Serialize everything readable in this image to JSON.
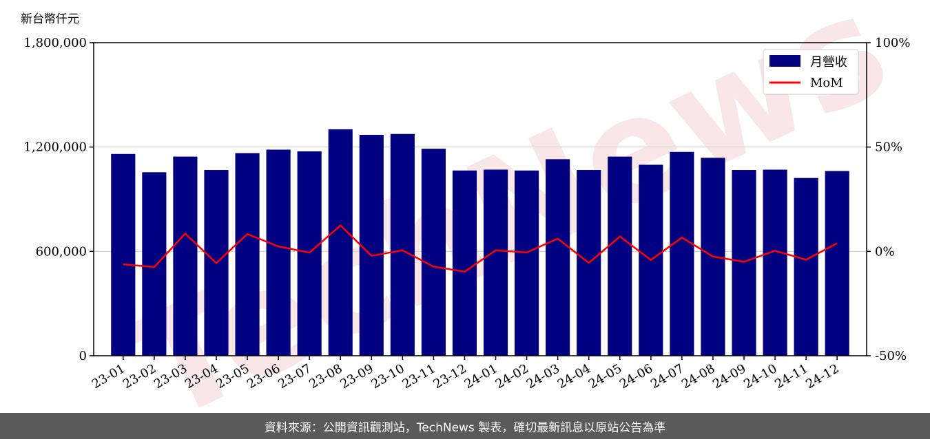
{
  "watermark": "TechNews",
  "footer": {
    "text": "資料來源：公開資訊觀測站，TechNews 製表，確切最新訊息以原站公告為準"
  },
  "colors": {
    "bar": "#000080",
    "line": "#ff0000",
    "grid": "#d9d9d9",
    "footer_bg": "#5a5a5a"
  },
  "chart_data": {
    "type": "bar",
    "unit_label": "新台幣仟元",
    "categories": [
      "23-01",
      "23-02",
      "23-03",
      "23-04",
      "23-05",
      "23-06",
      "23-07",
      "23-08",
      "23-09",
      "23-10",
      "23-11",
      "23-12",
      "24-01",
      "24-02",
      "24-03",
      "24-04",
      "24-05",
      "24-06",
      "24-07",
      "24-08",
      "24-09",
      "24-10",
      "24-11",
      "24-12"
    ],
    "series": [
      {
        "name": "月營收",
        "type": "bar",
        "axis": "left",
        "values": [
          1160000,
          1055000,
          1145000,
          1068000,
          1165000,
          1185000,
          1175000,
          1302000,
          1270000,
          1275000,
          1190000,
          1065000,
          1070000,
          1065000,
          1130000,
          1068000,
          1145000,
          1098000,
          1172000,
          1138000,
          1068000,
          1070000,
          1022000,
          1062000
        ]
      },
      {
        "name": "MoM",
        "type": "line",
        "axis": "right",
        "values": [
          -6.2,
          -7.5,
          8.5,
          -5.6,
          8.3,
          2.4,
          -0.6,
          12.4,
          -2.1,
          0.5,
          -7.3,
          -9.7,
          0.5,
          -0.5,
          6.1,
          -5.5,
          7.1,
          -4.1,
          6.6,
          -2.5,
          -5.0,
          0.3,
          -4.0,
          3.9
        ]
      }
    ],
    "yleft": {
      "ylim": [
        0,
        1800000
      ],
      "ticks": [
        0,
        600000,
        1200000,
        1800000
      ],
      "tick_labels": [
        "0",
        "600,000",
        "1,200,000",
        "1,800,000"
      ]
    },
    "yright": {
      "ylim": [
        -50,
        100
      ],
      "ticks": [
        -50,
        0,
        50,
        100
      ],
      "tick_labels": [
        "-50%",
        "0%",
        "50%",
        "100%"
      ]
    },
    "grid": "horizontal",
    "legend_position": "top-right"
  }
}
